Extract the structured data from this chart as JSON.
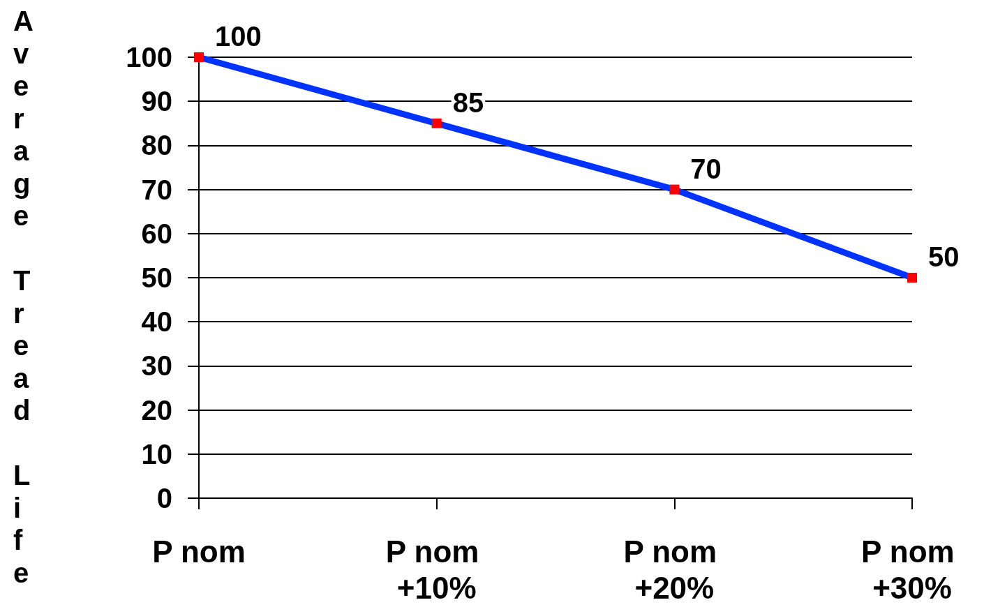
{
  "chart_data": {
    "type": "line",
    "ylabel": "Average Tread Life",
    "categories": [
      "P nom",
      "P nom +10%",
      "P nom +20%",
      "P nom +30%"
    ],
    "series": [
      {
        "color": "#0033ff",
        "colors": [
          "#ff0000",
          "#ff0000",
          "#ff0000",
          "#ff0000"
        ],
        "values": [
          100,
          85,
          70,
          50
        ]
      }
    ],
    "ylim": [
      0,
      100
    ],
    "yticks": [
      0,
      10,
      20,
      30,
      40,
      50,
      60,
      70,
      80,
      90,
      100
    ],
    "grid": "y",
    "marker": "square",
    "data_labels": true
  }
}
